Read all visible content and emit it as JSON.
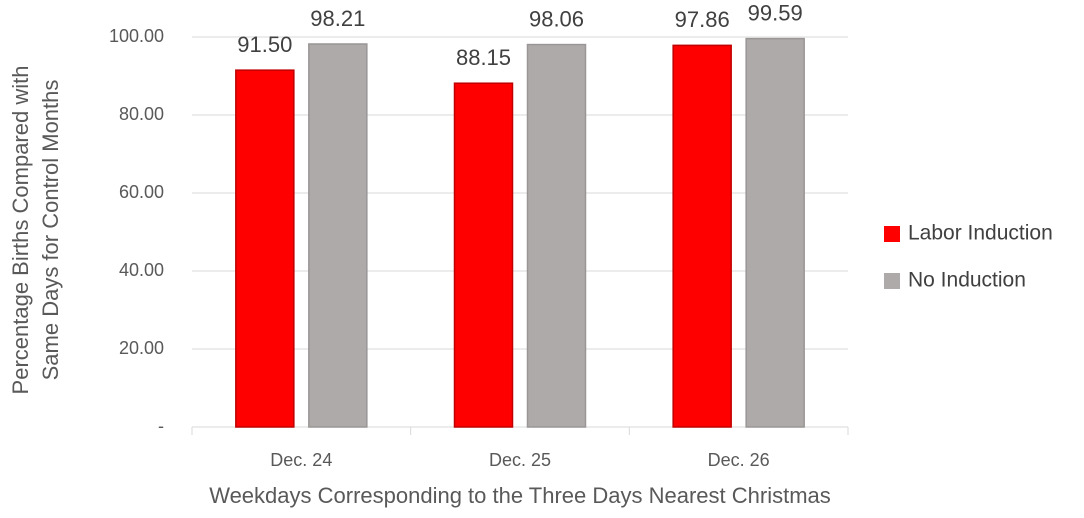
{
  "chart_data": {
    "type": "bar",
    "categories": [
      "Dec. 24",
      "Dec. 25",
      "Dec. 26"
    ],
    "series": [
      {
        "name": "Labor Induction",
        "color": "#ff0000",
        "values": [
          91.5,
          88.15,
          97.86
        ],
        "value_labels": [
          "91.50",
          "88.15",
          "97.86"
        ]
      },
      {
        "name": "No Induction",
        "color": "#aeaaaa",
        "values": [
          98.21,
          98.06,
          99.59
        ],
        "value_labels": [
          "98.21",
          "98.06",
          "99.59"
        ]
      }
    ],
    "xlabel": "Weekdays Corresponding to the Three Days Nearest Christmas",
    "ylabel": [
      "Percentage Births Compared with",
      "Same Days for Control Months"
    ],
    "ylim": [
      0,
      100
    ],
    "yticks": [
      {
        "value": 0,
        "label": "-"
      },
      {
        "value": 20,
        "label": "20.00"
      },
      {
        "value": 40,
        "label": "40.00"
      },
      {
        "value": 60,
        "label": "60.00"
      },
      {
        "value": 80,
        "label": "80.00"
      },
      {
        "value": 100,
        "label": "100.00"
      }
    ],
    "grid": true,
    "legend": "right"
  }
}
